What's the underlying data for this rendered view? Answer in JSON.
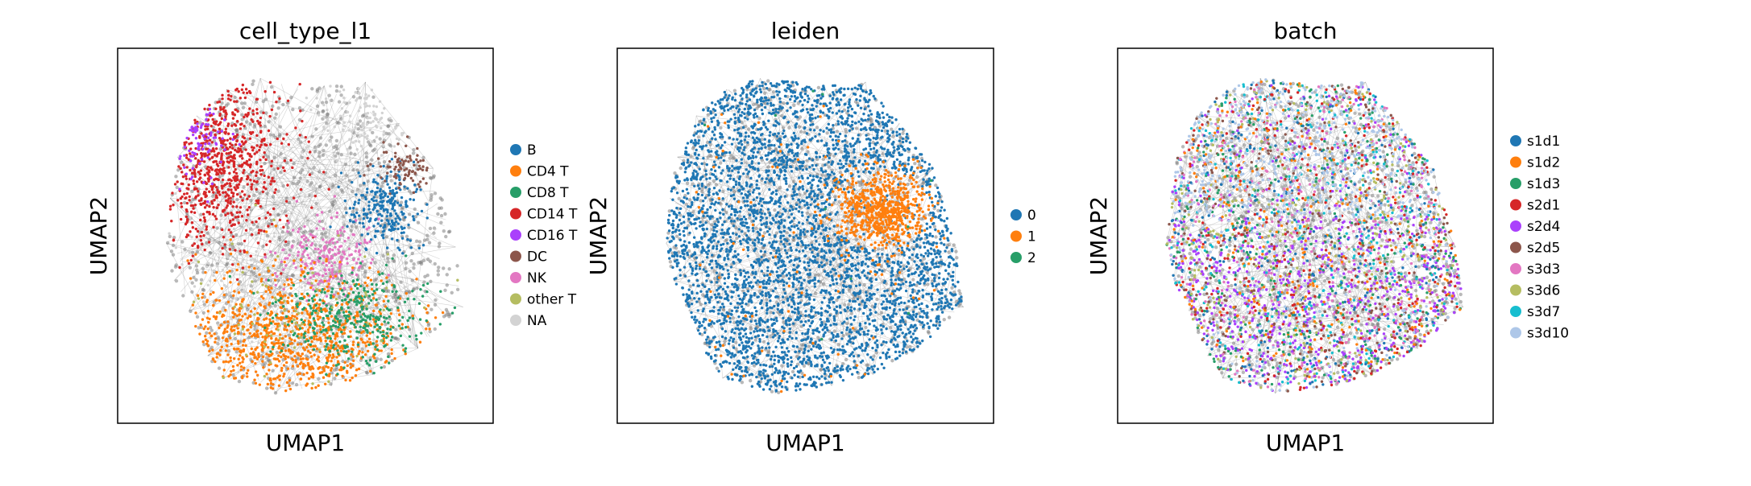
{
  "chart_data": [
    {
      "type": "scatter",
      "title": "cell_type_l1",
      "xlabel": "UMAP1",
      "ylabel": "UMAP2",
      "grid": false,
      "legend_placement": "right",
      "series": [
        {
          "name": "B",
          "color": "#1f77b4"
        },
        {
          "name": "CD4 T",
          "color": "#ff7f0e"
        },
        {
          "name": "CD8 T",
          "color": "#279e68"
        },
        {
          "name": "CD14 T",
          "color": "#d62728"
        },
        {
          "name": "CD16 T",
          "color": "#aa40fc"
        },
        {
          "name": "DC",
          "color": "#8c564b"
        },
        {
          "name": "NK",
          "color": "#e377c2"
        },
        {
          "name": "other T",
          "color": "#b5bd61"
        },
        {
          "name": "NA",
          "color": "#d3d3d3"
        }
      ]
    },
    {
      "type": "scatter",
      "title": "leiden",
      "xlabel": "UMAP1",
      "ylabel": "UMAP2",
      "grid": false,
      "legend_placement": "right",
      "series": [
        {
          "name": "0",
          "color": "#1f77b4"
        },
        {
          "name": "1",
          "color": "#ff7f0e"
        },
        {
          "name": "2",
          "color": "#279e68"
        }
      ]
    },
    {
      "type": "scatter",
      "title": "batch",
      "xlabel": "UMAP1",
      "ylabel": "UMAP2",
      "grid": false,
      "legend_placement": "right",
      "series": [
        {
          "name": "s1d1",
          "color": "#1f77b4"
        },
        {
          "name": "s1d2",
          "color": "#ff7f0e"
        },
        {
          "name": "s1d3",
          "color": "#279e68"
        },
        {
          "name": "s2d1",
          "color": "#d62728"
        },
        {
          "name": "s2d4",
          "color": "#aa40fc"
        },
        {
          "name": "s2d5",
          "color": "#8c564b"
        },
        {
          "name": "s3d3",
          "color": "#e377c2"
        },
        {
          "name": "s3d6",
          "color": "#b5bd61"
        },
        {
          "name": "s3d7",
          "color": "#17becf"
        },
        {
          "name": "s3d10",
          "color": "#aec7e8"
        }
      ]
    }
  ],
  "colors": {
    "edges": "#808080",
    "frame": "#000000"
  }
}
